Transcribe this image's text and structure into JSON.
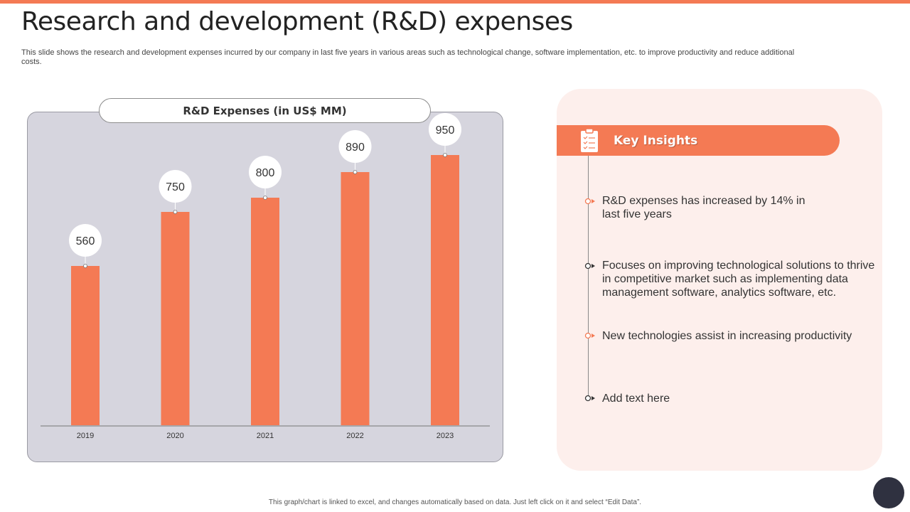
{
  "slide": {
    "title": "Research and development (R&D) expenses",
    "subtitle": "This slide shows the research and development expenses incurred by our company in last five years in various areas such as technological change, software implementation, etc. to improve productivity and reduce additional costs.",
    "footer_note": "This graph/chart is linked to excel, and changes automatically based on data. Just left click on it and select “Edit Data”."
  },
  "chart_data": {
    "type": "bar",
    "title": "R&D Expenses (in US$ MM)",
    "categories": [
      "2019",
      "2020",
      "2021",
      "2022",
      "2023"
    ],
    "values": [
      560,
      750,
      800,
      890,
      950
    ],
    "xlabel": "",
    "ylabel": "",
    "ylim": [
      0,
      1000
    ],
    "grid": false,
    "data_labels": true,
    "bar_color": "#f47a54"
  },
  "insights": {
    "header_label": "Key Insights",
    "header_icon": "clipboard-checklist-icon",
    "items": [
      {
        "text": "R&D expenses has increased by 14% in last five years",
        "marker": "orange"
      },
      {
        "text": "Focuses on improving technological solutions to thrive in competitive market such as implementing data management software, analytics software, etc.",
        "marker": "dark"
      },
      {
        "text": "New technologies assist in increasing productivity",
        "marker": "orange"
      },
      {
        "text": "Add text here",
        "marker": "dark"
      }
    ]
  },
  "colors": {
    "accent": "#f47a54",
    "chart_panel": "#d6d5de",
    "insights_panel": "#fdefec",
    "dark_button": "#2f3140"
  }
}
